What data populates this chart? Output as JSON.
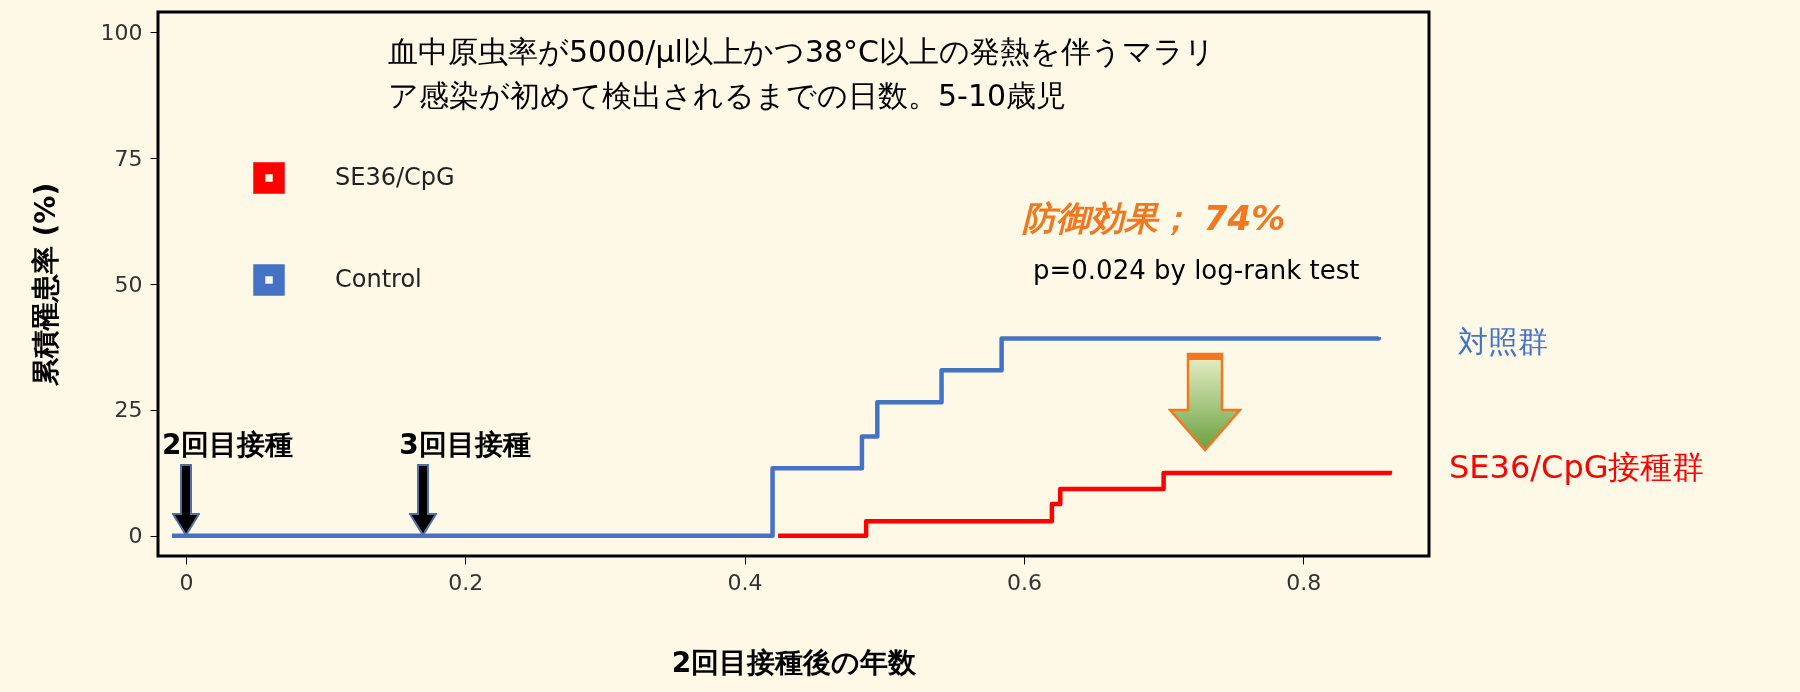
{
  "chart_data": {
    "type": "step",
    "title": "血中原虫率が5000/µl以上かつ38°C以上の発熱を伴うマラリア感染が初めて検出されるまでの日数。5-10歳児",
    "xlabel": "2回目接種後の年数",
    "ylabel": "累積罹患率 (%)",
    "xlim": [
      -0.02,
      0.89
    ],
    "ylim": [
      -4,
      104
    ],
    "xticks": [
      0,
      0.2,
      0.4,
      0.6,
      0.8
    ],
    "yticks": [
      0,
      25,
      50,
      75,
      100
    ],
    "grid": false,
    "legend": "top left",
    "line_style": "solid",
    "marker": "none",
    "series": [
      {
        "name": "SE36/CpG",
        "color": "#ff0000",
        "x": [
          0.424,
          0.487,
          0.62,
          0.626,
          0.7,
          0.862
        ],
        "values": [
          0,
          2.9,
          6.3,
          9.3,
          12.5,
          12.9
        ]
      },
      {
        "name": "Control",
        "color": "#4472c4",
        "x": [
          -0.01,
          0.42,
          0.484,
          0.495,
          0.541,
          0.584,
          0.854
        ],
        "values": [
          0,
          13.4,
          19.7,
          26.5,
          32.9,
          39.2,
          39.5
        ]
      }
    ],
    "annotations": [
      {
        "text": "2回目接種",
        "x": 0,
        "y": 0
      },
      {
        "text": "3回目接種",
        "x": 0.17,
        "y": 0
      },
      "防御効果； 74%",
      "p=0.024 by log-rank test",
      "対照群",
      "SE36/CpG接種群"
    ]
  }
}
